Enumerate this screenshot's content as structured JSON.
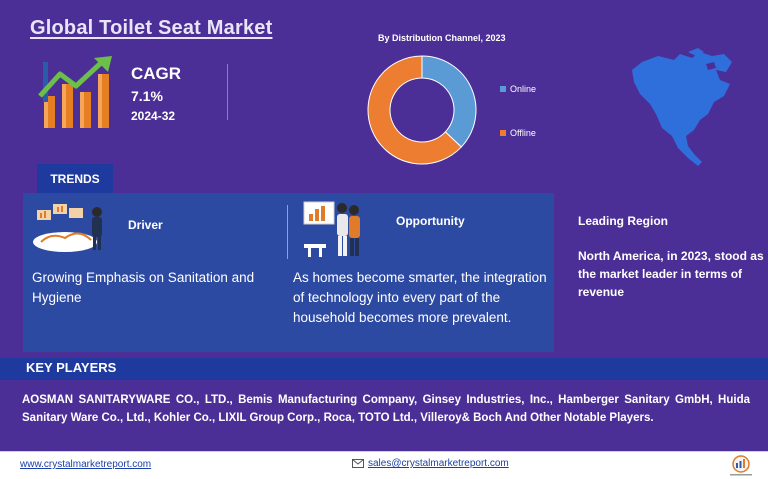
{
  "title": "Global Toilet Seat Market",
  "cagr": {
    "label": "CAGR",
    "value": "7.1%",
    "period": "2024-32"
  },
  "chart_data": {
    "type": "pie",
    "title": "By Distribution Channel, 2023",
    "categories": [
      "Online",
      "Offline"
    ],
    "values": [
      37,
      63
    ],
    "colors": [
      "#5b9bd5",
      "#ed7d31"
    ],
    "legend_position": "right"
  },
  "trends": {
    "tab_label": "TRENDS",
    "driver": {
      "title": "Driver",
      "text": "Growing Emphasis on Sanitation and Hygiene"
    },
    "opportunity": {
      "title": "Opportunity",
      "text": "As homes become smarter, the integration of technology into every part of the household becomes more prevalent."
    }
  },
  "region": {
    "title": "Leading Region",
    "text": "North America, in 2023, stood as the market leader in terms of revenue"
  },
  "key_players": {
    "title": "KEY PLAYERS",
    "text": "AOSMAN SANITARYWARE CO., LTD., Bemis Manufacturing Company, Ginsey Industries, Inc., Hamberger Sanitary GmbH, Huida Sanitary Ware Co., Ltd., Kohler Co., LIXIL Group Corp., Roca, TOTO Ltd., Villeroy& Boch And Other Notable Players."
  },
  "footer": {
    "website": "www.crystalmarketreport.com",
    "email": "sales@crystalmarketreport.com"
  },
  "icons": [
    "growth-chart-icon",
    "north-america-map-icon",
    "mail-icon",
    "brand-logo-icon"
  ]
}
